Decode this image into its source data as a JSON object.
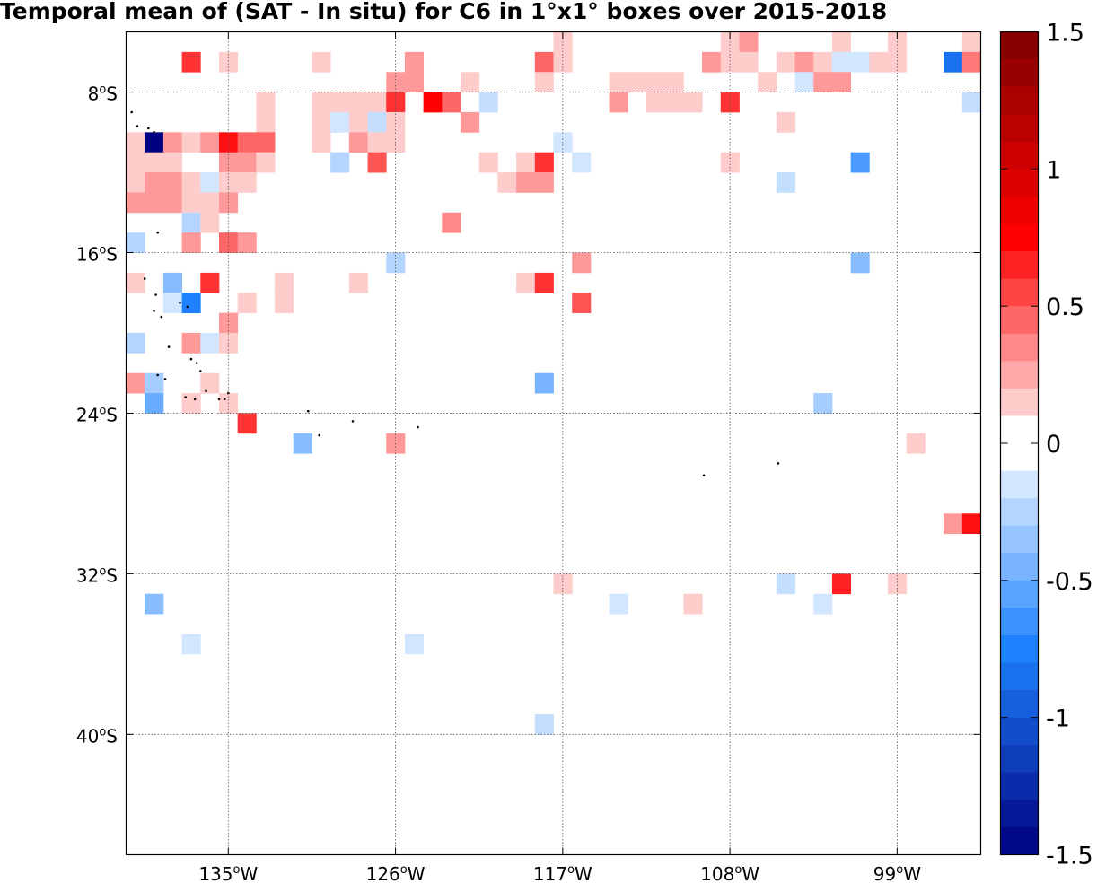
{
  "title": "Temporal mean of (SAT - In situ) for C6 in 1°x1° boxes over 2015-2018",
  "chart_data": {
    "type": "heatmap",
    "title": "Temporal mean of (SAT - In situ) for C6 in 1°x1° boxes over 2015-2018",
    "xlabel": "",
    "ylabel": "",
    "lon_range": [
      -140.5,
      -94.5
    ],
    "lat_range": [
      -46,
      -5
    ],
    "grid": true,
    "x_ticks": [
      {
        "value": -135,
        "label": "135",
        "unit": "W"
      },
      {
        "value": -126,
        "label": "126",
        "unit": "W"
      },
      {
        "value": -117,
        "label": "117",
        "unit": "W"
      },
      {
        "value": -108,
        "label": "108",
        "unit": "W"
      },
      {
        "value": -99,
        "label": "99",
        "unit": "W"
      }
    ],
    "y_ticks": [
      {
        "value": -8,
        "label": "8",
        "unit": "S"
      },
      {
        "value": -16,
        "label": "16",
        "unit": "S"
      },
      {
        "value": -24,
        "label": "24",
        "unit": "S"
      },
      {
        "value": -32,
        "label": "32",
        "unit": "S"
      },
      {
        "value": -40,
        "label": "40",
        "unit": "S"
      }
    ],
    "degree_symbol": "o",
    "colorbar": {
      "range": [
        -1.5,
        1.5
      ],
      "step": 0.1,
      "ticks": [
        "1.5",
        "1",
        "0.5",
        "0",
        "-0.5",
        "-1",
        "-1.5"
      ],
      "low_color": "#000080",
      "mid_color": "#ffffff",
      "high_color": "#800000"
    },
    "cells": [
      {
        "lon": -117,
        "lat": -5.5,
        "v": 0.15
      },
      {
        "lon": -108,
        "lat": -5.5,
        "v": 0.15
      },
      {
        "lon": -107,
        "lat": -5.5,
        "v": 0.3
      },
      {
        "lon": -102,
        "lat": -5.5,
        "v": 0.15
      },
      {
        "lon": -99,
        "lat": -5.5,
        "v": 0.15
      },
      {
        "lon": -95,
        "lat": -5.5,
        "v": 0.15
      },
      {
        "lon": -137,
        "lat": -6.5,
        "v": 0.6
      },
      {
        "lon": -135,
        "lat": -6.5,
        "v": 0.15
      },
      {
        "lon": -130,
        "lat": -6.5,
        "v": 0.15
      },
      {
        "lon": -125,
        "lat": -6.5,
        "v": 0.3
      },
      {
        "lon": -118,
        "lat": -6.5,
        "v": 0.45
      },
      {
        "lon": -117,
        "lat": -6.5,
        "v": 0.15
      },
      {
        "lon": -109,
        "lat": -6.5,
        "v": 0.3
      },
      {
        "lon": -108,
        "lat": -6.5,
        "v": 0.15
      },
      {
        "lon": -107,
        "lat": -6.5,
        "v": 0.15
      },
      {
        "lon": -105,
        "lat": -6.5,
        "v": 0.15
      },
      {
        "lon": -104,
        "lat": -6.5,
        "v": 0.3
      },
      {
        "lon": -103,
        "lat": -6.5,
        "v": 0.15
      },
      {
        "lon": -102,
        "lat": -6.5,
        "v": -0.1
      },
      {
        "lon": -101,
        "lat": -6.5,
        "v": -0.1
      },
      {
        "lon": -100,
        "lat": -6.5,
        "v": 0.15
      },
      {
        "lon": -99,
        "lat": -6.5,
        "v": 0.15
      },
      {
        "lon": -96,
        "lat": -6.5,
        "v": -0.85
      },
      {
        "lon": -95,
        "lat": -6.5,
        "v": 0.4
      },
      {
        "lon": -126,
        "lat": -7.5,
        "v": 0.3
      },
      {
        "lon": -125,
        "lat": -7.5,
        "v": 0.3
      },
      {
        "lon": -122,
        "lat": -7.5,
        "v": 0.15
      },
      {
        "lon": -118,
        "lat": -7.5,
        "v": 0.15
      },
      {
        "lon": -114,
        "lat": -7.5,
        "v": 0.15
      },
      {
        "lon": -113,
        "lat": -7.5,
        "v": 0.15
      },
      {
        "lon": -112,
        "lat": -7.5,
        "v": 0.15
      },
      {
        "lon": -111,
        "lat": -7.5,
        "v": 0.15
      },
      {
        "lon": -106,
        "lat": -7.5,
        "v": 0.15
      },
      {
        "lon": -104,
        "lat": -7.5,
        "v": -0.1
      },
      {
        "lon": -103,
        "lat": -7.5,
        "v": 0.3
      },
      {
        "lon": -102,
        "lat": -7.5,
        "v": 0.3
      },
      {
        "lon": -133,
        "lat": -8.5,
        "v": 0.15
      },
      {
        "lon": -130,
        "lat": -8.5,
        "v": 0.15
      },
      {
        "lon": -129,
        "lat": -8.5,
        "v": 0.15
      },
      {
        "lon": -128,
        "lat": -8.5,
        "v": 0.15
      },
      {
        "lon": -127,
        "lat": -8.5,
        "v": 0.15
      },
      {
        "lon": -126,
        "lat": -8.5,
        "v": 0.6
      },
      {
        "lon": -124,
        "lat": -8.5,
        "v": 0.75
      },
      {
        "lon": -123,
        "lat": -8.5,
        "v": 0.45
      },
      {
        "lon": -121,
        "lat": -8.5,
        "v": -0.2
      },
      {
        "lon": -114,
        "lat": -8.5,
        "v": 0.3
      },
      {
        "lon": -112,
        "lat": -8.5,
        "v": 0.15
      },
      {
        "lon": -111,
        "lat": -8.5,
        "v": 0.15
      },
      {
        "lon": -110,
        "lat": -8.5,
        "v": 0.15
      },
      {
        "lon": -108,
        "lat": -8.5,
        "v": 0.6
      },
      {
        "lon": -95,
        "lat": -8.5,
        "v": -0.2
      },
      {
        "lon": -133,
        "lat": -9.5,
        "v": 0.15
      },
      {
        "lon": -130,
        "lat": -9.5,
        "v": 0.15
      },
      {
        "lon": -129,
        "lat": -9.5,
        "v": -0.1
      },
      {
        "lon": -128,
        "lat": -9.5,
        "v": 0.15
      },
      {
        "lon": -127,
        "lat": -9.5,
        "v": -0.2
      },
      {
        "lon": -126,
        "lat": -9.5,
        "v": 0.15
      },
      {
        "lon": -122,
        "lat": -9.5,
        "v": 0.3
      },
      {
        "lon": -105,
        "lat": -9.5,
        "v": 0.15
      },
      {
        "lon": -140,
        "lat": -10.5,
        "v": 0.15
      },
      {
        "lon": -139,
        "lat": -10.5,
        "v": -1.5
      },
      {
        "lon": -138,
        "lat": -10.5,
        "v": 0.3
      },
      {
        "lon": -137,
        "lat": -10.5,
        "v": 0.15
      },
      {
        "lon": -136,
        "lat": -10.5,
        "v": 0.3
      },
      {
        "lon": -135,
        "lat": -10.5,
        "v": 0.7
      },
      {
        "lon": -134,
        "lat": -10.5,
        "v": 0.45
      },
      {
        "lon": -133,
        "lat": -10.5,
        "v": 0.45
      },
      {
        "lon": -130,
        "lat": -10.5,
        "v": 0.15
      },
      {
        "lon": -128,
        "lat": -10.5,
        "v": 0.3
      },
      {
        "lon": -127,
        "lat": -10.5,
        "v": 0.15
      },
      {
        "lon": -126,
        "lat": -10.5,
        "v": 0.15
      },
      {
        "lon": -117,
        "lat": -10.5,
        "v": -0.1
      },
      {
        "lon": -140,
        "lat": -11.5,
        "v": 0.15
      },
      {
        "lon": -139,
        "lat": -11.5,
        "v": 0.15
      },
      {
        "lon": -138,
        "lat": -11.5,
        "v": 0.15
      },
      {
        "lon": -135,
        "lat": -11.5,
        "v": 0.3
      },
      {
        "lon": -134,
        "lat": -11.5,
        "v": 0.3
      },
      {
        "lon": -133,
        "lat": -11.5,
        "v": 0.15
      },
      {
        "lon": -129,
        "lat": -11.5,
        "v": -0.25
      },
      {
        "lon": -127,
        "lat": -11.5,
        "v": 0.5
      },
      {
        "lon": -121,
        "lat": -11.5,
        "v": 0.15
      },
      {
        "lon": -119,
        "lat": -11.5,
        "v": 0.15
      },
      {
        "lon": -118,
        "lat": -11.5,
        "v": 0.6
      },
      {
        "lon": -116,
        "lat": -11.5,
        "v": -0.1
      },
      {
        "lon": -108,
        "lat": -11.5,
        "v": 0.15
      },
      {
        "lon": -101,
        "lat": -11.5,
        "v": -0.6
      },
      {
        "lon": -140,
        "lat": -12.5,
        "v": 0.15
      },
      {
        "lon": -139,
        "lat": -12.5,
        "v": 0.3
      },
      {
        "lon": -138,
        "lat": -12.5,
        "v": 0.3
      },
      {
        "lon": -137,
        "lat": -12.5,
        "v": 0.15
      },
      {
        "lon": -136,
        "lat": -12.5,
        "v": -0.1
      },
      {
        "lon": -135,
        "lat": -12.5,
        "v": 0.15
      },
      {
        "lon": -134,
        "lat": -12.5,
        "v": 0.15
      },
      {
        "lon": -120,
        "lat": -12.5,
        "v": 0.15
      },
      {
        "lon": -119,
        "lat": -12.5,
        "v": 0.3
      },
      {
        "lon": -118,
        "lat": -12.5,
        "v": 0.3
      },
      {
        "lon": -105,
        "lat": -12.5,
        "v": -0.2
      },
      {
        "lon": -140,
        "lat": -13.5,
        "v": 0.3
      },
      {
        "lon": -139,
        "lat": -13.5,
        "v": 0.3
      },
      {
        "lon": -138,
        "lat": -13.5,
        "v": 0.3
      },
      {
        "lon": -137,
        "lat": -13.5,
        "v": 0.15
      },
      {
        "lon": -136,
        "lat": -13.5,
        "v": 0.15
      },
      {
        "lon": -135,
        "lat": -13.5,
        "v": 0.3
      },
      {
        "lon": -137,
        "lat": -14.5,
        "v": -0.25
      },
      {
        "lon": -136,
        "lat": -14.5,
        "v": 0.15
      },
      {
        "lon": -123,
        "lat": -14.5,
        "v": 0.35
      },
      {
        "lon": -140,
        "lat": -15.5,
        "v": -0.25
      },
      {
        "lon": -137,
        "lat": -15.5,
        "v": 0.3
      },
      {
        "lon": -135,
        "lat": -15.5,
        "v": 0.45
      },
      {
        "lon": -134,
        "lat": -15.5,
        "v": 0.3
      },
      {
        "lon": -126,
        "lat": -16.5,
        "v": -0.25
      },
      {
        "lon": -116,
        "lat": -16.5,
        "v": 0.3
      },
      {
        "lon": -101,
        "lat": -16.5,
        "v": -0.4
      },
      {
        "lon": -140,
        "lat": -17.5,
        "v": 0.15
      },
      {
        "lon": -138,
        "lat": -17.5,
        "v": -0.4
      },
      {
        "lon": -136,
        "lat": -17.5,
        "v": 0.6
      },
      {
        "lon": -132,
        "lat": -17.5,
        "v": 0.15
      },
      {
        "lon": -128,
        "lat": -17.5,
        "v": 0.15
      },
      {
        "lon": -119,
        "lat": -17.5,
        "v": 0.15
      },
      {
        "lon": -118,
        "lat": -17.5,
        "v": 0.6
      },
      {
        "lon": -138,
        "lat": -18.5,
        "v": -0.1
      },
      {
        "lon": -137,
        "lat": -18.5,
        "v": -0.75
      },
      {
        "lon": -134,
        "lat": -18.5,
        "v": 0.15
      },
      {
        "lon": -132,
        "lat": -18.5,
        "v": 0.15
      },
      {
        "lon": -116,
        "lat": -18.5,
        "v": 0.5
      },
      {
        "lon": -135,
        "lat": -19.5,
        "v": 0.3
      },
      {
        "lon": -140,
        "lat": -20.5,
        "v": -0.25
      },
      {
        "lon": -137,
        "lat": -20.5,
        "v": 0.3
      },
      {
        "lon": -136,
        "lat": -20.5,
        "v": -0.1
      },
      {
        "lon": -135,
        "lat": -20.5,
        "v": 0.15
      },
      {
        "lon": -140,
        "lat": -22.5,
        "v": 0.3
      },
      {
        "lon": -139,
        "lat": -22.5,
        "v": -0.3
      },
      {
        "lon": -136,
        "lat": -22.5,
        "v": 0.15
      },
      {
        "lon": -118,
        "lat": -22.5,
        "v": -0.45
      },
      {
        "lon": -139,
        "lat": -23.5,
        "v": -0.5
      },
      {
        "lon": -137,
        "lat": -23.5,
        "v": 0.15
      },
      {
        "lon": -135,
        "lat": -23.5,
        "v": 0.15
      },
      {
        "lon": -103,
        "lat": -23.5,
        "v": -0.3
      },
      {
        "lon": -134,
        "lat": -24.5,
        "v": 0.6
      },
      {
        "lon": -131,
        "lat": -25.5,
        "v": -0.4
      },
      {
        "lon": -126,
        "lat": -25.5,
        "v": 0.3
      },
      {
        "lon": -98,
        "lat": -25.5,
        "v": 0.15
      },
      {
        "lon": -96,
        "lat": -29.5,
        "v": 0.3
      },
      {
        "lon": -95,
        "lat": -29.5,
        "v": 0.7
      },
      {
        "lon": -117,
        "lat": -32.5,
        "v": 0.15
      },
      {
        "lon": -105,
        "lat": -32.5,
        "v": -0.2
      },
      {
        "lon": -102,
        "lat": -32.5,
        "v": 0.65
      },
      {
        "lon": -99,
        "lat": -32.5,
        "v": 0.15
      },
      {
        "lon": -139,
        "lat": -33.5,
        "v": -0.4
      },
      {
        "lon": -114,
        "lat": -33.5,
        "v": -0.1
      },
      {
        "lon": -110,
        "lat": -33.5,
        "v": 0.15
      },
      {
        "lon": -103,
        "lat": -33.5,
        "v": -0.1
      },
      {
        "lon": -137,
        "lat": -35.5,
        "v": -0.1
      },
      {
        "lon": -125,
        "lat": -35.5,
        "v": -0.1
      },
      {
        "lon": -118,
        "lat": -39.5,
        "v": -0.2
      }
    ],
    "islands": [
      {
        "lon": -140.2,
        "lat": -9.0
      },
      {
        "lon": -139.9,
        "lat": -9.7
      },
      {
        "lon": -139.3,
        "lat": -9.8
      },
      {
        "lon": -139.0,
        "lat": -10.0
      },
      {
        "lon": -138.8,
        "lat": -15.0
      },
      {
        "lon": -139.5,
        "lat": -17.3
      },
      {
        "lon": -138.9,
        "lat": -18.1
      },
      {
        "lon": -137.6,
        "lat": -18.5
      },
      {
        "lon": -137.2,
        "lat": -18.7
      },
      {
        "lon": -139.0,
        "lat": -18.9
      },
      {
        "lon": -138.6,
        "lat": -19.2
      },
      {
        "lon": -138.2,
        "lat": -20.7
      },
      {
        "lon": -137.0,
        "lat": -21.3
      },
      {
        "lon": -136.7,
        "lat": -21.5
      },
      {
        "lon": -136.5,
        "lat": -21.9
      },
      {
        "lon": -138.8,
        "lat": -22.1
      },
      {
        "lon": -138.4,
        "lat": -22.3
      },
      {
        "lon": -136.2,
        "lat": -22.9
      },
      {
        "lon": -135.5,
        "lat": -23.3
      },
      {
        "lon": -135.2,
        "lat": -23.3
      },
      {
        "lon": -135.0,
        "lat": -23.0
      },
      {
        "lon": -137.3,
        "lat": -23.2
      },
      {
        "lon": -136.8,
        "lat": -23.3
      },
      {
        "lon": -130.1,
        "lat": -25.1
      },
      {
        "lon": -128.3,
        "lat": -24.4
      },
      {
        "lon": -124.8,
        "lat": -24.7
      },
      {
        "lon": -130.7,
        "lat": -23.9
      },
      {
        "lon": -109.4,
        "lat": -27.1
      },
      {
        "lon": -105.4,
        "lat": -26.5
      }
    ]
  }
}
